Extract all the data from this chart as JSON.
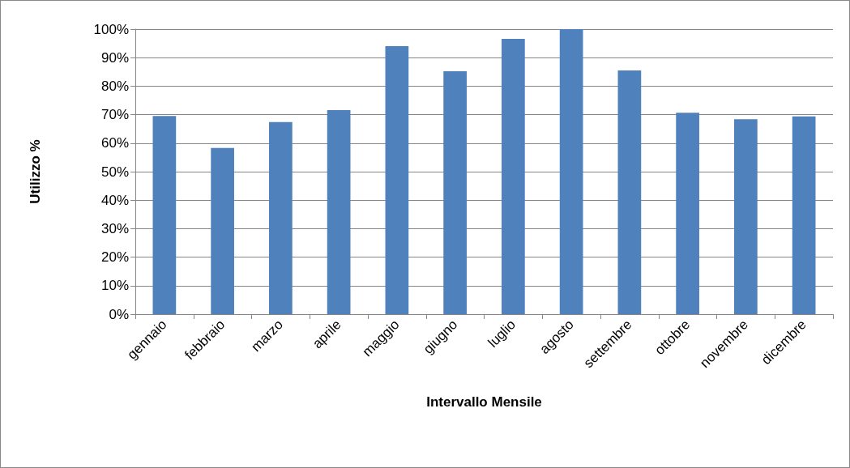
{
  "chart_data": {
    "type": "bar",
    "xlabel": "Intervallo Mensile",
    "ylabel": "Utilizzo %",
    "categories": [
      "gennaio",
      "febbraio",
      "marzo",
      "aprile",
      "maggio",
      "giugno",
      "luglio",
      "agosto",
      "settembre",
      "ottobre",
      "novembre",
      "dicembre"
    ],
    "values": [
      69.5,
      58.3,
      67.4,
      71.6,
      94,
      85.2,
      96.6,
      100,
      85.5,
      70.7,
      68.4,
      69.4
    ],
    "color": "#4f81bd",
    "ylim": [
      0,
      100
    ],
    "yticks": [
      {
        "value": 0,
        "label": "0%"
      },
      {
        "value": 10,
        "label": "10%"
      },
      {
        "value": 20,
        "label": "20%"
      },
      {
        "value": 30,
        "label": "30%"
      },
      {
        "value": 40,
        "label": "40%"
      },
      {
        "value": 50,
        "label": "50%"
      },
      {
        "value": 60,
        "label": "60%"
      },
      {
        "value": 70,
        "label": "70%"
      },
      {
        "value": 80,
        "label": "80%"
      },
      {
        "value": 90,
        "label": "90%"
      },
      {
        "value": 100,
        "label": "100%"
      }
    ],
    "grid": "y"
  }
}
